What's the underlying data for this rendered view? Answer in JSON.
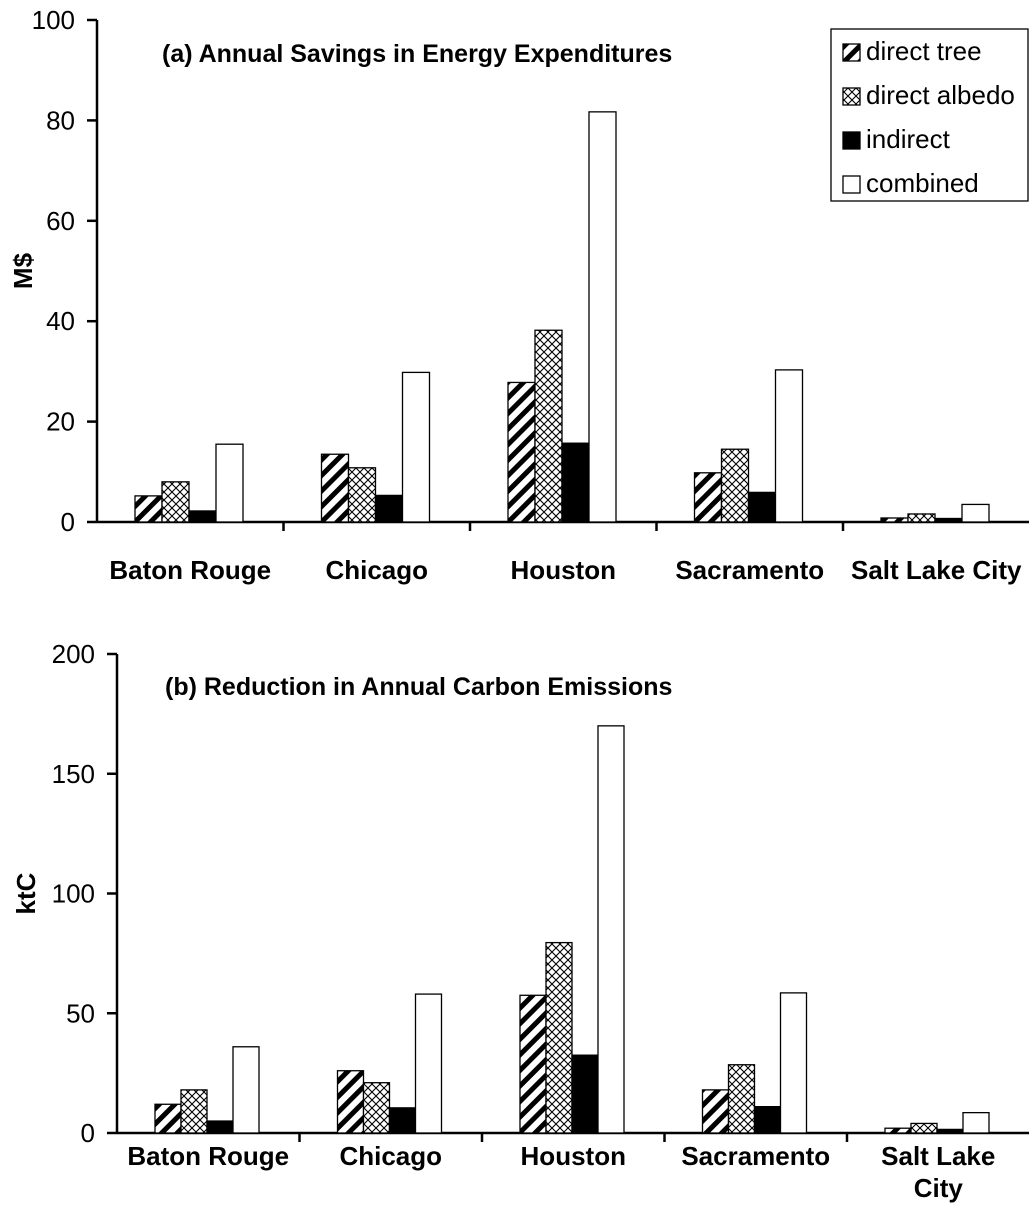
{
  "chart_data": [
    {
      "type": "bar",
      "title": "(a) Annual Savings in Energy Expenditures",
      "ylabel": "M$",
      "xlabel": "",
      "ylim": [
        0,
        100
      ],
      "yticks": [
        0,
        20,
        40,
        60,
        80,
        100
      ],
      "categories": [
        "Baton Rouge",
        "Chicago",
        "Houston",
        "Sacramento",
        "Salt Lake City"
      ],
      "series": [
        {
          "name": "direct tree",
          "pattern": "diagonal-hatch",
          "values": [
            5.2,
            13.5,
            27.8,
            9.8,
            0.8
          ]
        },
        {
          "name": "direct albedo",
          "pattern": "crosshatch",
          "values": [
            8.0,
            10.8,
            38.2,
            14.5,
            1.6
          ]
        },
        {
          "name": "indirect",
          "pattern": "solid-black",
          "values": [
            2.2,
            5.3,
            15.7,
            5.9,
            0.7
          ]
        },
        {
          "name": "combined",
          "pattern": "white",
          "values": [
            15.5,
            29.8,
            81.7,
            30.3,
            3.5
          ]
        }
      ],
      "legend": {
        "position": "top-right",
        "entries": [
          "direct tree",
          "direct albedo",
          "indirect",
          "combined"
        ]
      },
      "grid": false
    },
    {
      "type": "bar",
      "title": "(b) Reduction in Annual Carbon Emissions",
      "ylabel": "ktC",
      "xlabel": "",
      "ylim": [
        0,
        200
      ],
      "yticks": [
        0,
        50,
        100,
        150,
        200
      ],
      "categories": [
        "Baton Rouge",
        "Chicago",
        "Houston",
        "Sacramento",
        "Salt Lake City"
      ],
      "category_lines": [
        [
          "Baton Rouge"
        ],
        [
          "Chicago"
        ],
        [
          "Houston"
        ],
        [
          "Sacramento"
        ],
        [
          "Salt Lake",
          "City"
        ]
      ],
      "series": [
        {
          "name": "direct tree",
          "pattern": "diagonal-hatch",
          "values": [
            12.0,
            26.0,
            57.5,
            18.0,
            2.0
          ]
        },
        {
          "name": "direct albedo",
          "pattern": "crosshatch",
          "values": [
            18.0,
            21.0,
            79.5,
            28.5,
            4.0
          ]
        },
        {
          "name": "indirect",
          "pattern": "solid-black",
          "values": [
            5.0,
            10.5,
            32.5,
            11.0,
            1.5
          ]
        },
        {
          "name": "combined",
          "pattern": "white",
          "values": [
            36.0,
            58.0,
            170.0,
            58.5,
            8.5
          ]
        }
      ],
      "grid": false
    }
  ]
}
